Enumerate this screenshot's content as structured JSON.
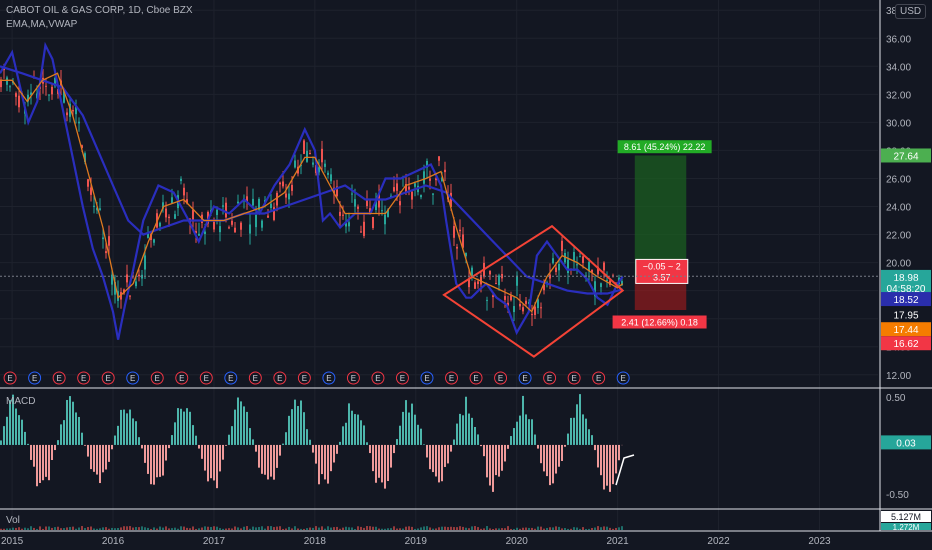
{
  "header": {
    "title": "CABOT OIL & GAS CORP, 1D, Cboe BZX",
    "indicators": "EMA,MA,VWAP",
    "currency": "USD"
  },
  "macd_pane": {
    "label": "MACD",
    "ticks": [
      "0.50",
      "-0.50"
    ],
    "value_tag": "0.03",
    "value": 0.03,
    "ylim": [
      -0.62,
      0.55
    ]
  },
  "vol_pane": {
    "label": "Vol",
    "value_tag": "5.127M",
    "value_tag2": "1.272M"
  },
  "price_axis": {
    "ticks": [
      "38.00",
      "36.00",
      "34.00",
      "32.00",
      "30.00",
      "28.00",
      "26.00",
      "24.00",
      "22.00",
      "20.00",
      "14.00",
      "12.00"
    ]
  },
  "price_tags": [
    {
      "label": "27.64",
      "price": 27.64,
      "color": "#4caf50",
      "text_color": "#ffffff"
    },
    {
      "label": "19.03",
      "price": 19.03,
      "color": "#131722",
      "text_color": "#ffffff"
    },
    {
      "label": "18.98",
      "price": 18.98,
      "color": "#26a69a",
      "text_color": "#ffffff"
    },
    {
      "label": "04:58:20",
      "price": 18.2,
      "color": "#26a69a",
      "text_color": "#ffffff"
    },
    {
      "label": "18.52",
      "price": 17.4,
      "color": "#2a2eac",
      "text_color": "#ffffff"
    },
    {
      "label": "17.95",
      "price": 16.3,
      "color": "#131722",
      "text_color": "#ffffff"
    },
    {
      "label": "17.44",
      "price": 15.25,
      "color": "#f57c00",
      "text_color": "#ffffff"
    },
    {
      "label": "16.62",
      "price": 14.25,
      "color": "#f23645",
      "text_color": "#ffffff"
    }
  ],
  "position": {
    "target_label": "8.61 (45.24%) 22.22",
    "stop_label": "2.41 (12.66%) 0.18",
    "mid_label_1": "−0.05 ~ 2",
    "mid_label_2": "3.57",
    "entry": 19.03,
    "target": 27.64,
    "stop": 16.62
  },
  "x_axis": {
    "labels": [
      "2015",
      "2016",
      "2017",
      "2018",
      "2019",
      "2020",
      "2021",
      "2022",
      "2023"
    ]
  },
  "earnings_marker": "E",
  "chart_data": {
    "type": "line",
    "title": "CABOT OIL & GAS CORP, 1D, Cboe BZX",
    "x_unit": "year",
    "ylim": [
      11.2,
      38.3
    ],
    "xlim": [
      2014.88,
      2023.58
    ],
    "series": [
      {
        "name": "",
        "x": [
          2014.88,
          2015.0,
          2015.08,
          2015.16,
          2015.25,
          2015.33,
          2015.4,
          2015.5,
          2015.6,
          2015.7,
          2015.8,
          2015.9,
          2016.0,
          2016.05,
          2016.12,
          2016.2,
          2016.3,
          2016.45,
          2016.6,
          2016.75,
          2016.85,
          2017.0,
          2017.15,
          2017.3,
          2017.45,
          2017.6,
          2017.75,
          2017.9,
          2018.0,
          2018.08,
          2018.15,
          2018.25,
          2018.4,
          2018.55,
          2018.7,
          2018.85,
          2019.0,
          2019.15,
          2019.25,
          2019.3,
          2019.4,
          2019.5,
          2019.55,
          2019.62,
          2019.7,
          2019.8,
          2019.9,
          2020.0,
          2020.12,
          2020.2,
          2020.3,
          2020.4,
          2020.5,
          2020.6,
          2020.7,
          2020.8,
          2020.9,
          2021.0,
          2021.05
        ],
        "values": [
          33.5,
          35.0,
          32.5,
          30.0,
          31.5,
          35.5,
          34.5,
          31.0,
          27.5,
          24.0,
          21.0,
          19.0,
          16.5,
          14.5,
          17.0,
          19.5,
          23.0,
          25.5,
          25.0,
          23.0,
          21.5,
          24.0,
          23.5,
          24.5,
          23.5,
          25.5,
          27.0,
          29.5,
          28.0,
          23.0,
          23.5,
          22.5,
          23.5,
          23.5,
          26.0,
          26.0,
          26.5,
          27.0,
          25.5,
          23.0,
          18.5,
          17.5,
          17.5,
          18.0,
          18.5,
          17.5,
          17.0,
          15.0,
          16.5,
          20.5,
          21.5,
          20.5,
          19.5,
          19.5,
          18.8,
          17.5,
          17.0,
          18.5,
          19.0
        ]
      },
      {
        "name": "",
        "x": [
          2014.88,
          2015.1,
          2015.3,
          2015.5,
          2015.7,
          2015.85,
          2016.0,
          2016.15,
          2016.3,
          2016.5,
          2016.7,
          2016.9,
          2017.1,
          2017.3,
          2017.5,
          2017.7,
          2017.9,
          2018.1,
          2018.3,
          2018.5,
          2018.7,
          2018.9,
          2019.1,
          2019.3,
          2019.5,
          2019.7,
          2019.9,
          2020.1,
          2020.3,
          2020.5,
          2020.7,
          2020.9,
          2021.05
        ],
        "values": [
          34.0,
          33.5,
          33.0,
          32.5,
          30.5,
          28.0,
          25.5,
          23.0,
          22.0,
          22.5,
          23.0,
          23.0,
          23.0,
          23.5,
          23.5,
          24.0,
          24.5,
          25.0,
          25.5,
          24.5,
          24.5,
          25.0,
          25.5,
          25.0,
          23.5,
          22.0,
          20.5,
          19.0,
          18.5,
          18.0,
          17.8,
          17.8,
          18.1
        ]
      },
      {
        "name": "",
        "x": [
          2014.88,
          2015.0,
          2015.15,
          2015.3,
          2015.45,
          2015.6,
          2015.75,
          2015.9,
          2016.05,
          2016.2,
          2016.35,
          2016.5,
          2016.7,
          2016.9,
          2017.1,
          2017.3,
          2017.5,
          2017.7,
          2017.9,
          2018.0,
          2018.15,
          2018.3,
          2018.5,
          2018.7,
          2018.9,
          2019.1,
          2019.25,
          2019.4,
          2019.55,
          2019.7,
          2019.85,
          2020.0,
          2020.15,
          2020.3,
          2020.45,
          2020.6,
          2020.8,
          2021.0,
          2021.05
        ],
        "values": [
          33.0,
          33.0,
          31.5,
          33.0,
          33.5,
          30.5,
          26.5,
          22.5,
          17.5,
          18.5,
          21.5,
          24.0,
          24.5,
          23.0,
          23.0,
          23.5,
          24.0,
          25.0,
          27.5,
          27.5,
          25.5,
          23.5,
          23.5,
          23.5,
          25.5,
          26.0,
          26.5,
          22.5,
          19.0,
          18.5,
          18.0,
          17.5,
          16.5,
          19.0,
          20.5,
          20.0,
          19.0,
          18.2,
          18.5
        ]
      }
    ],
    "colors": {
      "line_a": "#2962ff",
      "line_b": "#2a2ebe",
      "line_c": "#e07a1f",
      "pattern": "#f44336",
      "up": "#26a69a",
      "down": "#ef5350"
    },
    "pattern_points": {
      "x": [
        2019.28,
        2020.35,
        2021.05,
        2020.17
      ],
      "y": [
        17.7,
        22.6,
        18.0,
        13.3
      ]
    }
  }
}
